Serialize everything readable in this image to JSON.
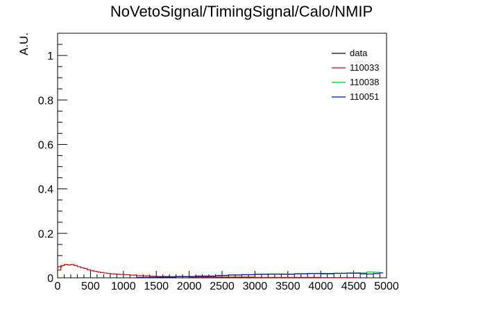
{
  "chart_data": {
    "type": "line",
    "title": "NoVetoSignal/TimingSignal/Calo/NMIP",
    "xlabel": "",
    "ylabel": "A.U.",
    "xlim": [
      0,
      5000
    ],
    "ylim": [
      0,
      1.1
    ],
    "grid": false,
    "legend_position": "top-right",
    "x_ticks": [
      "0",
      "500",
      "1000",
      "1500",
      "2000",
      "2500",
      "3000",
      "3500",
      "4000",
      "4500",
      "5000"
    ],
    "y_ticks": [
      "0",
      "0.2",
      "0.4",
      "0.6",
      "0.8",
      "1"
    ],
    "bin_width": 50,
    "series": [
      {
        "name": "data",
        "color": "#000000",
        "x": [],
        "values": []
      },
      {
        "name": "110033",
        "color": "#cc0000",
        "x": [
          0,
          50,
          100,
          150,
          200,
          250,
          300,
          350,
          400,
          450,
          500,
          550,
          600,
          650,
          700,
          750,
          800,
          850,
          900,
          950,
          1000,
          1100,
          1200,
          1300,
          1400,
          1500,
          1700,
          2000,
          2500,
          3000,
          3500,
          4000,
          4500
        ],
        "values": [
          0.035,
          0.055,
          0.06,
          0.058,
          0.06,
          0.055,
          0.05,
          0.045,
          0.042,
          0.036,
          0.032,
          0.029,
          0.026,
          0.024,
          0.022,
          0.02,
          0.018,
          0.017,
          0.016,
          0.015,
          0.014,
          0.012,
          0.01,
          0.009,
          0.007,
          0.006,
          0.005,
          0.004,
          0.003,
          0.002,
          0.002,
          0.001,
          0.001
        ]
      },
      {
        "name": "110038",
        "color": "#00cc00",
        "x": [
          1200,
          1500,
          1800,
          2100,
          2400,
          2600,
          2800,
          3000,
          3200,
          3400,
          3600,
          3800,
          4000,
          4200,
          4400,
          4600,
          4700,
          4800,
          4900
        ],
        "values": [
          0.002,
          0.004,
          0.006,
          0.008,
          0.01,
          0.012,
          0.014,
          0.015,
          0.016,
          0.017,
          0.018,
          0.019,
          0.02,
          0.021,
          0.022,
          0.022,
          0.026,
          0.025,
          0.022
        ]
      },
      {
        "name": "110051",
        "color": "#0000cc",
        "x": [
          1200,
          1500,
          1800,
          2100,
          2400,
          2600,
          2800,
          3000,
          3200,
          3400,
          3600,
          3800,
          4000,
          4200,
          4400,
          4600,
          4700,
          4800,
          4900
        ],
        "values": [
          0.002,
          0.004,
          0.006,
          0.008,
          0.011,
          0.013,
          0.014,
          0.016,
          0.017,
          0.016,
          0.018,
          0.019,
          0.018,
          0.02,
          0.021,
          0.018,
          0.017,
          0.019,
          0.022
        ]
      }
    ]
  }
}
